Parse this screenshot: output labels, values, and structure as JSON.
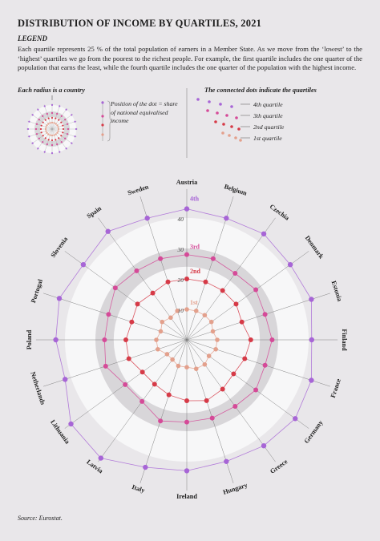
{
  "title": "DISTRIBUTION OF INCOME BY QUARTILES, 2021",
  "legend": {
    "heading": "LEGEND",
    "text": "Each quartile represents 25 % of the total population of earners in a Member State. As we move from the ‘lowest’ to the ‘highest’ quartiles we go from the poorest to the richest people. For example, the first quartile includes the one quarter of the population that earns the least, while the fourth quartile includes the one quarter of the population with the highest income.",
    "radius_note": "Each radius is a country",
    "position_note": "Position of the dot = share of national equivalised income",
    "connected_note": "The connected dots indicate the quartiles",
    "quartile_labels": [
      "4th quartile",
      "3th quartile",
      "2nd quartile",
      "1st quartile"
    ]
  },
  "source": "Source: Eurostat.",
  "colors": {
    "q4": "#a765d6",
    "q3": "#d54a98",
    "q2": "#d63a47",
    "q1": "#e3a08c",
    "band": "#d8d6d9",
    "white": "#f7f7f8",
    "background": "#e9e7ea"
  },
  "chart_data": {
    "type": "radar",
    "countries": [
      "Austria",
      "Belgium",
      "Czechia",
      "Denmark",
      "Estonia",
      "Finland",
      "France",
      "Germany",
      "Greece",
      "Hungary",
      "Ireland",
      "Italy",
      "Latvia",
      "Lithuania",
      "Netherlands",
      "Poland",
      "Portugal",
      "Slovenia",
      "Spain",
      "Sweden"
    ],
    "ticks": [
      10,
      20,
      30,
      40
    ],
    "rmax": 50,
    "series": [
      {
        "name": "4th",
        "values": [
          43,
          42,
          43,
          42,
          43,
          41,
          43,
          44,
          43,
          42,
          43,
          44,
          48,
          47,
          42,
          43,
          44,
          42,
          44,
          42
        ]
      },
      {
        "name": "3rd",
        "values": [
          28,
          28,
          27,
          28,
          27,
          28,
          27,
          28,
          27,
          27,
          27,
          28,
          25,
          25,
          28,
          27,
          27,
          29,
          28,
          28
        ]
      },
      {
        "name": "2nd",
        "values": [
          20,
          20,
          20,
          20,
          19,
          21,
          20,
          19,
          20,
          21,
          20,
          19,
          18,
          18,
          20,
          20,
          19,
          20,
          19,
          20
        ]
      },
      {
        "name": "1st",
        "values": [
          10,
          10,
          10,
          10,
          9,
          10,
          10,
          9,
          10,
          10,
          9,
          9,
          8,
          8,
          10,
          10,
          9,
          10,
          9,
          10
        ]
      }
    ],
    "tags": [
      "4th",
      "3rd",
      "2nd",
      "1st"
    ]
  }
}
